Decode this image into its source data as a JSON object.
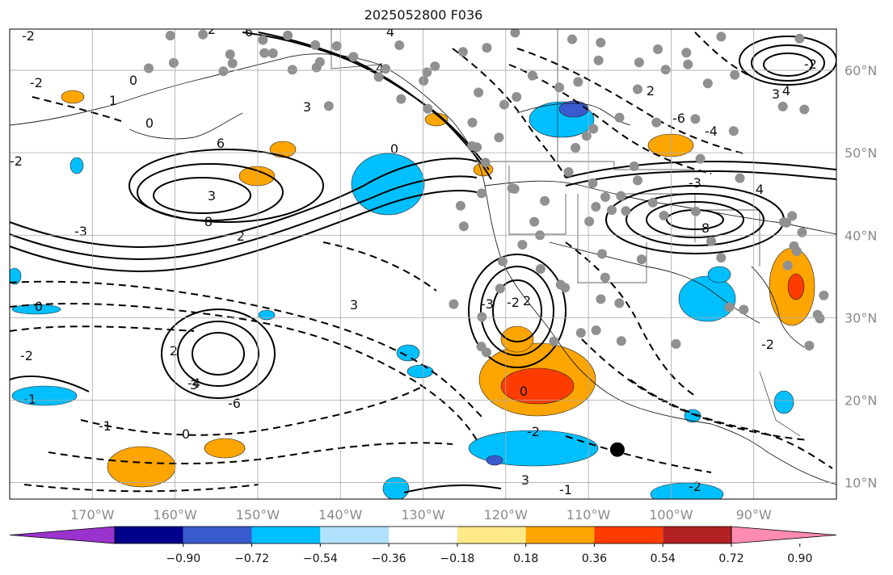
{
  "title": "2025052800 F036",
  "map": {
    "lon_range": [
      -180,
      -80
    ],
    "lat_range": [
      8,
      65
    ],
    "lon_ticks": [
      {
        "value": -170,
        "label": "170°W"
      },
      {
        "value": -160,
        "label": "160°W"
      },
      {
        "value": -150,
        "label": "150°W"
      },
      {
        "value": -140,
        "label": "140°W"
      },
      {
        "value": -130,
        "label": "130°W"
      },
      {
        "value": -120,
        "label": "120°W"
      },
      {
        "value": -110,
        "label": "110°W"
      },
      {
        "value": -100,
        "label": "100°W"
      },
      {
        "value": -90,
        "label": "90°W"
      }
    ],
    "lat_ticks": [
      {
        "value": 60,
        "label": "60°N"
      },
      {
        "value": 50,
        "label": "50°N"
      },
      {
        "value": 40,
        "label": "40°N"
      },
      {
        "value": 30,
        "label": "30°N"
      },
      {
        "value": 20,
        "label": "20°N"
      },
      {
        "value": 10,
        "label": "10°N"
      }
    ],
    "grid": true,
    "contour_labels": [
      "-2",
      "0",
      "-2",
      "1",
      "0",
      "2",
      "3",
      "6",
      "3",
      "8",
      "6",
      "4",
      "2",
      "-3",
      "-2",
      "0",
      "3",
      "-4",
      "2",
      "-6",
      "3",
      "4",
      "-2",
      "-3",
      "2",
      "0",
      "-2",
      "3",
      "-1",
      "-2",
      "-1",
      "0",
      "-2",
      "-1",
      "0",
      "2",
      "-2",
      "8",
      "4",
      "-3",
      "-6",
      "-4",
      "3",
      "4",
      "-2"
    ],
    "colors": {
      "negative_strong": "#3a5bd0",
      "negative": "#00bfff",
      "positive": "#ffa500",
      "positive_strong": "#ff3c00",
      "positive_max": "#b22222",
      "station": "#909090",
      "marker": "#000000"
    },
    "station_marker_count": 120,
    "feature_marker": {
      "lon": -106.5,
      "lat": 14,
      "color": "#000000"
    }
  },
  "colorbar": {
    "colors": [
      "#9a32cd",
      "#00008b",
      "#3a5bd0",
      "#00bfff",
      "#b0e2ff",
      "#ffffff",
      "#ffea8a",
      "#ffa500",
      "#ff3c00",
      "#b22222",
      "#ff8cb0"
    ],
    "over_color": "#ff8cb0",
    "under_color": "#9a32cd",
    "tick_labels": [
      "−0.90",
      "−0.72",
      "−0.54",
      "−0.36",
      "−0.18",
      "0.18",
      "0.36",
      "0.54",
      "0.72",
      "0.90"
    ]
  }
}
